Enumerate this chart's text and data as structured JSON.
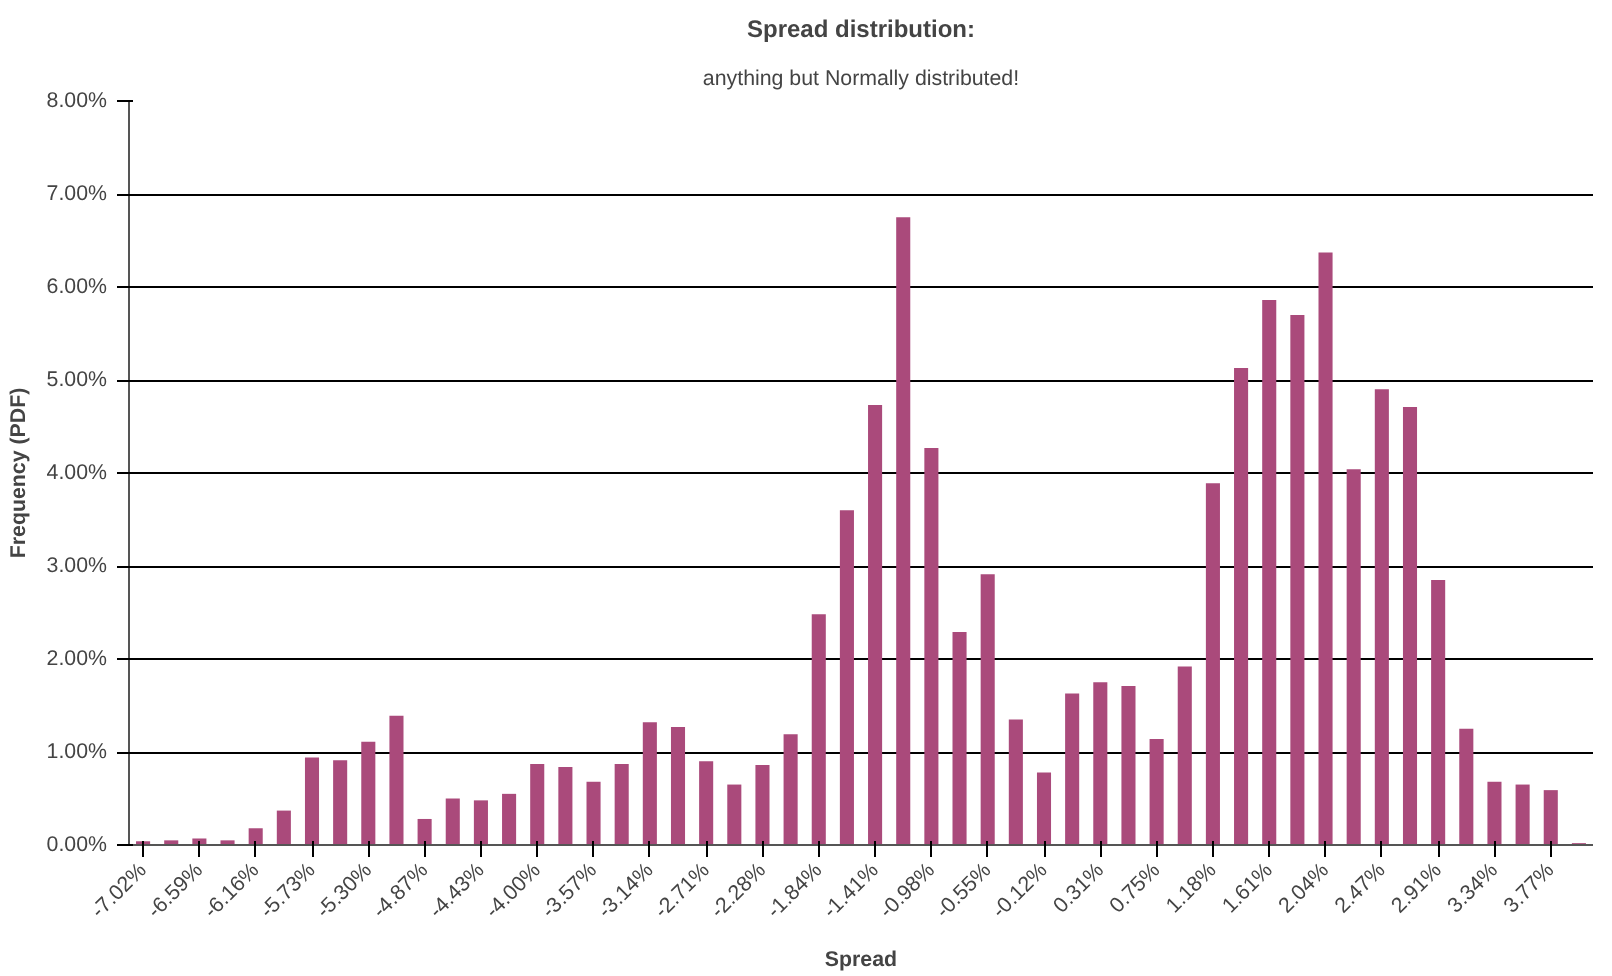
{
  "chart_data": {
    "type": "bar",
    "title": "Spread distribution:",
    "subtitle": "anything but Normally distributed!",
    "xlabel": "Spread",
    "ylabel": "Frequency (PDF)",
    "categories": [
      "-7.02%",
      null,
      "-6.59%",
      null,
      "-6.16%",
      null,
      "-5.73%",
      null,
      "-5.30%",
      null,
      "-4.87%",
      null,
      "-4.43%",
      null,
      "-4.00%",
      null,
      "-3.57%",
      null,
      "-3.14%",
      null,
      "-2.71%",
      null,
      "-2.28%",
      null,
      "-1.84%",
      null,
      "-1.41%",
      null,
      "-0.98%",
      null,
      "-0.55%",
      null,
      "-0.12%",
      null,
      "0.31%",
      null,
      "0.75%",
      null,
      "1.18%",
      null,
      "1.61%",
      null,
      "2.04%",
      null,
      "2.47%",
      null,
      "2.91%",
      null,
      "3.34%",
      null,
      "3.77%",
      null
    ],
    "values": [
      0.04,
      0.05,
      0.07,
      0.05,
      0.18,
      0.37,
      0.94,
      0.91,
      1.11,
      1.39,
      0.28,
      0.5,
      0.48,
      0.55,
      0.87,
      0.84,
      0.68,
      0.87,
      1.32,
      1.27,
      0.9,
      0.65,
      0.86,
      1.19,
      2.48,
      3.6,
      4.73,
      6.75,
      4.27,
      2.29,
      2.91,
      1.35,
      0.78,
      1.63,
      1.75,
      1.71,
      1.14,
      1.92,
      3.89,
      5.13,
      5.86,
      5.7,
      6.37,
      4.04,
      4.9,
      4.71,
      2.85,
      1.25,
      0.68,
      0.65,
      0.59,
      0.02
    ],
    "color": "#aa4a7b",
    "ylim": [
      0,
      8
    ],
    "yticks": [
      {
        "value": 0,
        "label": "0.00%"
      },
      {
        "value": 1,
        "label": "1.00%"
      },
      {
        "value": 2,
        "label": "2.00%"
      },
      {
        "value": 3,
        "label": "3.00%"
      },
      {
        "value": 4,
        "label": "4.00%"
      },
      {
        "value": 5,
        "label": "5.00%"
      },
      {
        "value": 6,
        "label": "6.00%"
      },
      {
        "value": 7,
        "label": "7.00%"
      },
      {
        "value": 8,
        "label": "8.00%"
      }
    ],
    "grid": "y"
  }
}
